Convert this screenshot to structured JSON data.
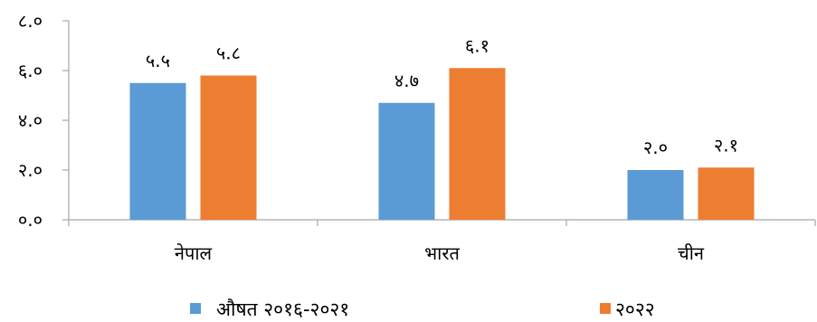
{
  "chart_data": {
    "type": "bar",
    "categories": [
      "नेपाल",
      "भारत",
      "चीन"
    ],
    "series": [
      {
        "name": "औषत २०१६-२०२१",
        "values": [
          5.5,
          4.7,
          2.0
        ],
        "labels": [
          "५.५",
          "४.७",
          "२.०"
        ],
        "color": "#5B9BD5"
      },
      {
        "name": "२०२२",
        "values": [
          5.8,
          6.1,
          2.1
        ],
        "labels": [
          "५.८",
          "६.१",
          "२.१"
        ],
        "color": "#ED7D31"
      }
    ],
    "ylim": [
      0,
      8
    ],
    "yticks": [
      0,
      2,
      4,
      6,
      8
    ],
    "ytick_labels": [
      "०.०",
      "२.०",
      "४.०",
      "६.०",
      "८.०"
    ],
    "grid": false,
    "legend_position": "bottom"
  }
}
